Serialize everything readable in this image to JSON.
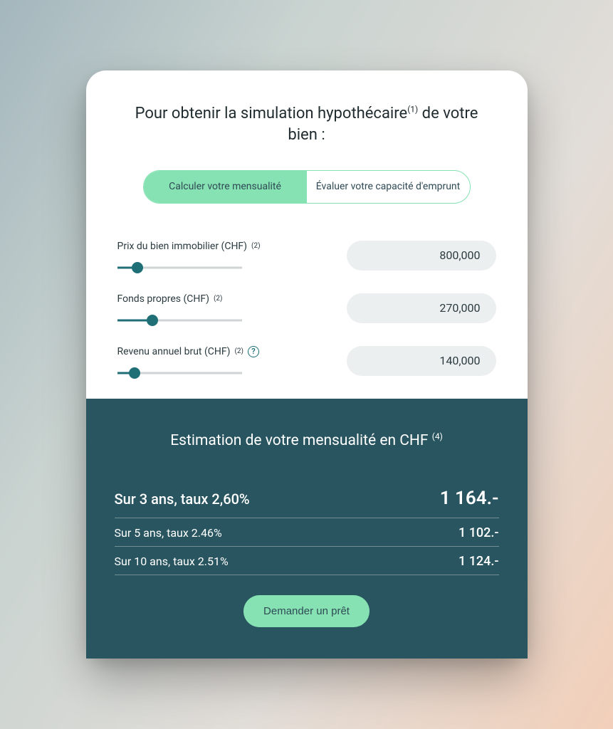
{
  "colors": {
    "accent": "#86e2b3",
    "dark_teal": "#28555f",
    "slider_fill": "#28555f",
    "slider_track": "#d0d4d6",
    "value_box_bg": "#eceff0",
    "text_dark": "#222b2e",
    "card_bg": "#ffffff"
  },
  "title": {
    "line1": "Pour obtenir la simulation hypothécaire",
    "sup": "(1)",
    "line2": " de votre bien :"
  },
  "tabs": {
    "active_index": 0,
    "items": [
      {
        "label": "Calculer votre mensualité"
      },
      {
        "label": "Évaluer votre capacité d'emprunt"
      }
    ]
  },
  "fields": [
    {
      "id": "property-price",
      "label": "Prix du bien immobilier (CHF)",
      "sup": "(2)",
      "has_help": false,
      "value_display": "800,000",
      "slider_percent": 16
    },
    {
      "id": "own-funds",
      "label": "Fonds propres (CHF)",
      "sup": "(2)",
      "has_help": false,
      "value_display": "270,000",
      "slider_percent": 28
    },
    {
      "id": "gross-income",
      "label": "Revenu annuel brut (CHF)",
      "sup": "(2)",
      "has_help": true,
      "value_display": "140,000",
      "slider_percent": 14
    }
  ],
  "results": {
    "title": "Estimation de votre mensualité en CHF",
    "title_sup": "(4)",
    "rows": [
      {
        "label": "Sur 3 ans, taux 2,60%",
        "value": "1 164.-",
        "primary": true
      },
      {
        "label": "Sur 5 ans, taux 2.46%",
        "value": "1 102.-",
        "primary": false
      },
      {
        "label": "Sur 10 ans, taux 2.51%",
        "value": "1 124.-",
        "primary": false
      }
    ],
    "cta_label": "Demander un prêt"
  }
}
